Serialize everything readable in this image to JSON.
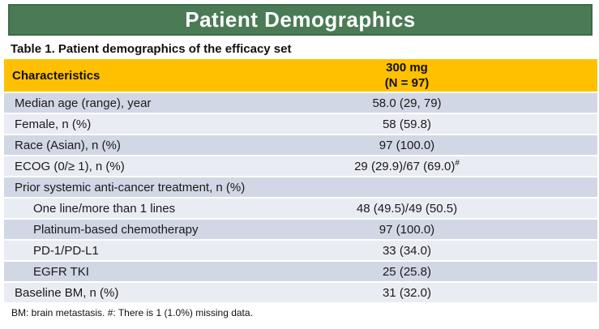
{
  "banner": {
    "title": "Patient Demographics"
  },
  "table_title": "Table 1. Patient demographics of the efficacy set",
  "table": {
    "header": {
      "characteristics": "Characteristics",
      "dose_line1": "300 mg",
      "dose_line2": "(N = 97)"
    },
    "rows": [
      {
        "label": "Median age (range), year",
        "value": "58.0 (29, 79)",
        "value_sup": "",
        "indent": false,
        "shade": "dark"
      },
      {
        "label": "Female, n (%)",
        "value": "58 (59.8)",
        "value_sup": "",
        "indent": false,
        "shade": "light"
      },
      {
        "label": "Race (Asian), n (%)",
        "value": "97 (100.0)",
        "value_sup": "",
        "indent": false,
        "shade": "dark"
      },
      {
        "label": "ECOG (0/≥ 1), n (%)",
        "value": "29 (29.9)/67 (69.0)",
        "value_sup": "#",
        "indent": false,
        "shade": "light"
      },
      {
        "label": "Prior systemic anti-cancer treatment, n (%)",
        "value": "",
        "value_sup": "",
        "indent": false,
        "shade": "dark"
      },
      {
        "label": "One line/more than 1 lines",
        "value": "48 (49.5)/49 (50.5)",
        "value_sup": "",
        "indent": true,
        "shade": "light"
      },
      {
        "label": "Platinum-based chemotherapy",
        "value": "97 (100.0)",
        "value_sup": "",
        "indent": true,
        "shade": "dark"
      },
      {
        "label": "PD-1/PD-L1",
        "value": "33 (34.0)",
        "value_sup": "",
        "indent": true,
        "shade": "light"
      },
      {
        "label": "EGFR TKI",
        "value": "25 (25.8)",
        "value_sup": "",
        "indent": true,
        "shade": "dark"
      },
      {
        "label": "Baseline BM, n (%)",
        "value": "31 (32.0)",
        "value_sup": "",
        "indent": false,
        "shade": "light"
      }
    ]
  },
  "footnote": "BM: brain metastasis. #: There is 1 (1.0%) missing data.",
  "colors": {
    "banner_green": "#4A7B55",
    "banner_border": "#3C6B47",
    "header_gold": "#FFC000",
    "row_dark": "#D2D7E5",
    "row_light": "#EAECF4"
  }
}
